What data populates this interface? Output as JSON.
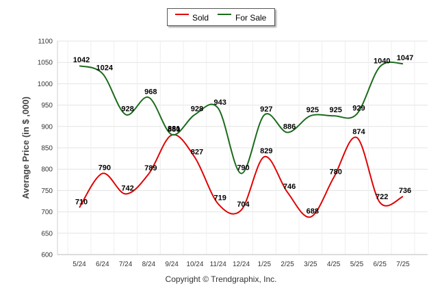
{
  "legend": {
    "sold_label": "Sold",
    "forsale_label": "For Sale",
    "sold_color": "#e00000",
    "forsale_color": "#1a6b1a"
  },
  "copyright": "Copyright © Trendgraphix, Inc.",
  "chart_data": {
    "type": "line",
    "ylabel": "Average Price (in $ ,000)",
    "ylim": [
      600,
      1100
    ],
    "yticks": [
      600,
      650,
      700,
      750,
      800,
      850,
      900,
      950,
      1000,
      1050,
      1100
    ],
    "categories": [
      "5/24",
      "6/24",
      "7/24",
      "8/24",
      "9/24",
      "10/24",
      "11/24",
      "12/24",
      "1/25",
      "2/25",
      "3/25",
      "4/25",
      "5/25",
      "6/25",
      "7/25"
    ],
    "grid": true,
    "smooth": true,
    "legend_position": "top-center",
    "series": [
      {
        "name": "Sold",
        "color": "#e00000",
        "values": [
          710,
          790,
          742,
          789,
          880,
          827,
          719,
          704,
          829,
          746,
          688,
          780,
          874,
          722,
          736
        ]
      },
      {
        "name": "For Sale",
        "color": "#1a6b1a",
        "values": [
          1042,
          1024,
          928,
          968,
          881,
          928,
          943,
          790,
          927,
          886,
          925,
          925,
          929,
          1040,
          1047
        ]
      }
    ]
  }
}
